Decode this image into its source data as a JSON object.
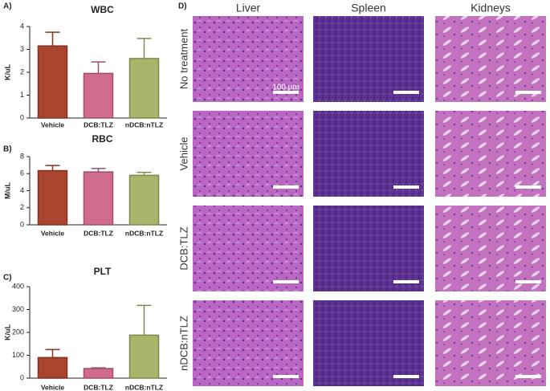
{
  "chart_data": [
    {
      "type": "bar",
      "panel_label": "A)",
      "title": "WBC",
      "y_label": "K/uL",
      "categories": [
        "Vehicle",
        "DCB:TLZ",
        "nDCB:nTLZ"
      ],
      "values": [
        3.15,
        1.95,
        2.6
      ],
      "errors": [
        0.6,
        0.5,
        0.88
      ],
      "colors": [
        "#a9452f",
        "#d06a8e",
        "#a9b56a"
      ],
      "ylim": [
        0,
        4
      ],
      "yticks": [
        0,
        1,
        2,
        3,
        4
      ]
    },
    {
      "type": "bar",
      "panel_label": "B)",
      "title": "RBC",
      "y_label": "M/uL",
      "categories": [
        "Vehicle",
        "DCB:TLZ",
        "nDCB:nTLZ"
      ],
      "values": [
        6.35,
        6.2,
        5.8
      ],
      "errors": [
        0.6,
        0.4,
        0.35
      ],
      "colors": [
        "#a9452f",
        "#d06a8e",
        "#a9b56a"
      ],
      "ylim": [
        0,
        8
      ],
      "yticks": [
        0,
        2,
        4,
        6,
        8
      ]
    },
    {
      "type": "bar",
      "panel_label": "C)",
      "title": "PLT",
      "y_label": "K/uL",
      "categories": [
        "Vehicle",
        "DCB:TLZ",
        "nDCB:nTLZ"
      ],
      "values": [
        90,
        42,
        188
      ],
      "errors": [
        35,
        3,
        130
      ],
      "colors": [
        "#a9452f",
        "#d06a8e",
        "#a9b56a"
      ],
      "ylim": [
        0,
        400
      ],
      "yticks": [
        0,
        100,
        200,
        300,
        400
      ]
    }
  ],
  "panel_d": {
    "label": "D)",
    "columns": [
      "Liver",
      "Spleen",
      "Kidneys"
    ],
    "rows": [
      "No treatment",
      "Vehicle",
      "DCB:TLZ",
      "nDCB:nTLZ"
    ],
    "scale_label": "100 µm"
  }
}
